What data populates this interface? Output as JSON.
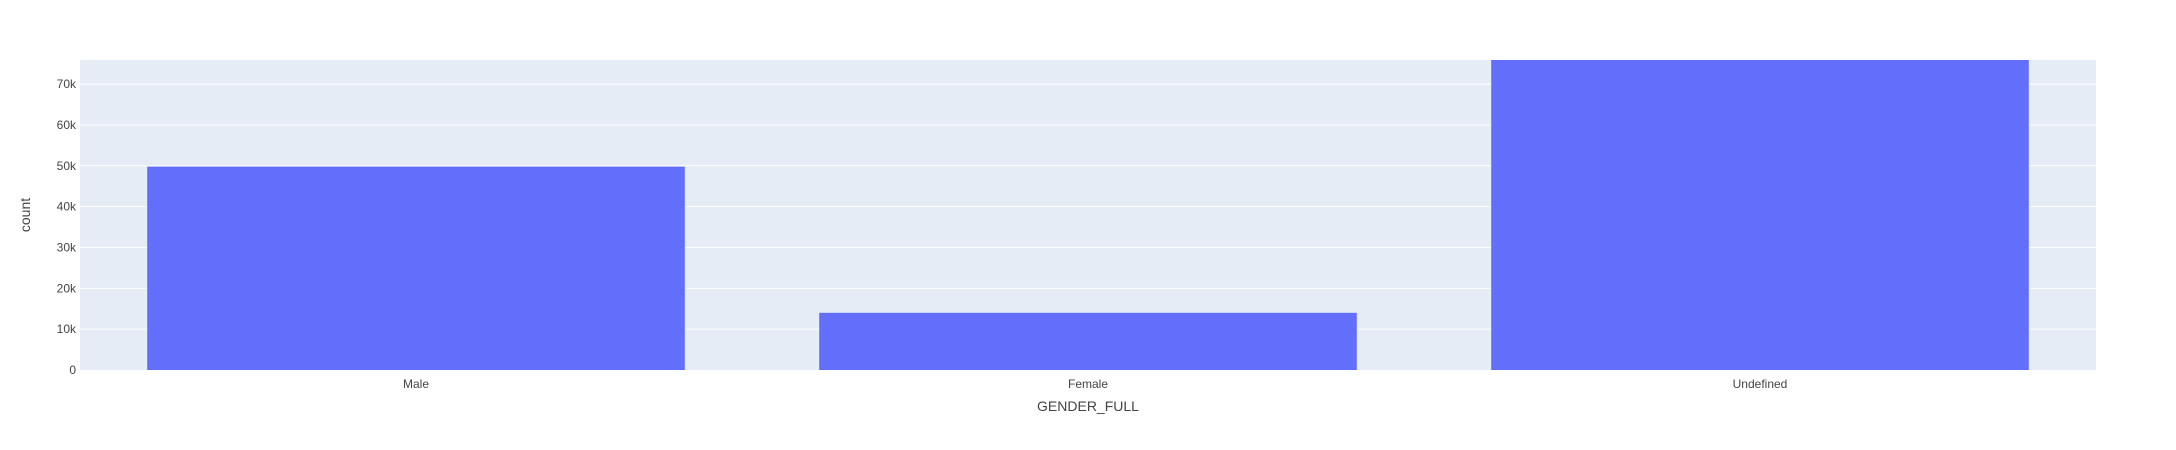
{
  "chart_data": {
    "type": "bar",
    "categories": [
      "Male",
      "Female",
      "Undefined"
    ],
    "values": [
      49800,
      14000,
      75900
    ],
    "title": "",
    "xlabel": "GENDER_FULL",
    "ylabel": "count",
    "ylim": [
      0,
      75900
    ],
    "yticks": [
      0,
      10000,
      20000,
      30000,
      40000,
      50000,
      60000,
      70000
    ],
    "ytick_labels": [
      "0",
      "10k",
      "20k",
      "30k",
      "40k",
      "50k",
      "60k",
      "70k"
    ],
    "grid": true,
    "legend": "none",
    "colors": {
      "bar": "#636efa",
      "plot_bg": "#e5ecf6",
      "grid": "#ffffff",
      "text": "#444444"
    }
  }
}
